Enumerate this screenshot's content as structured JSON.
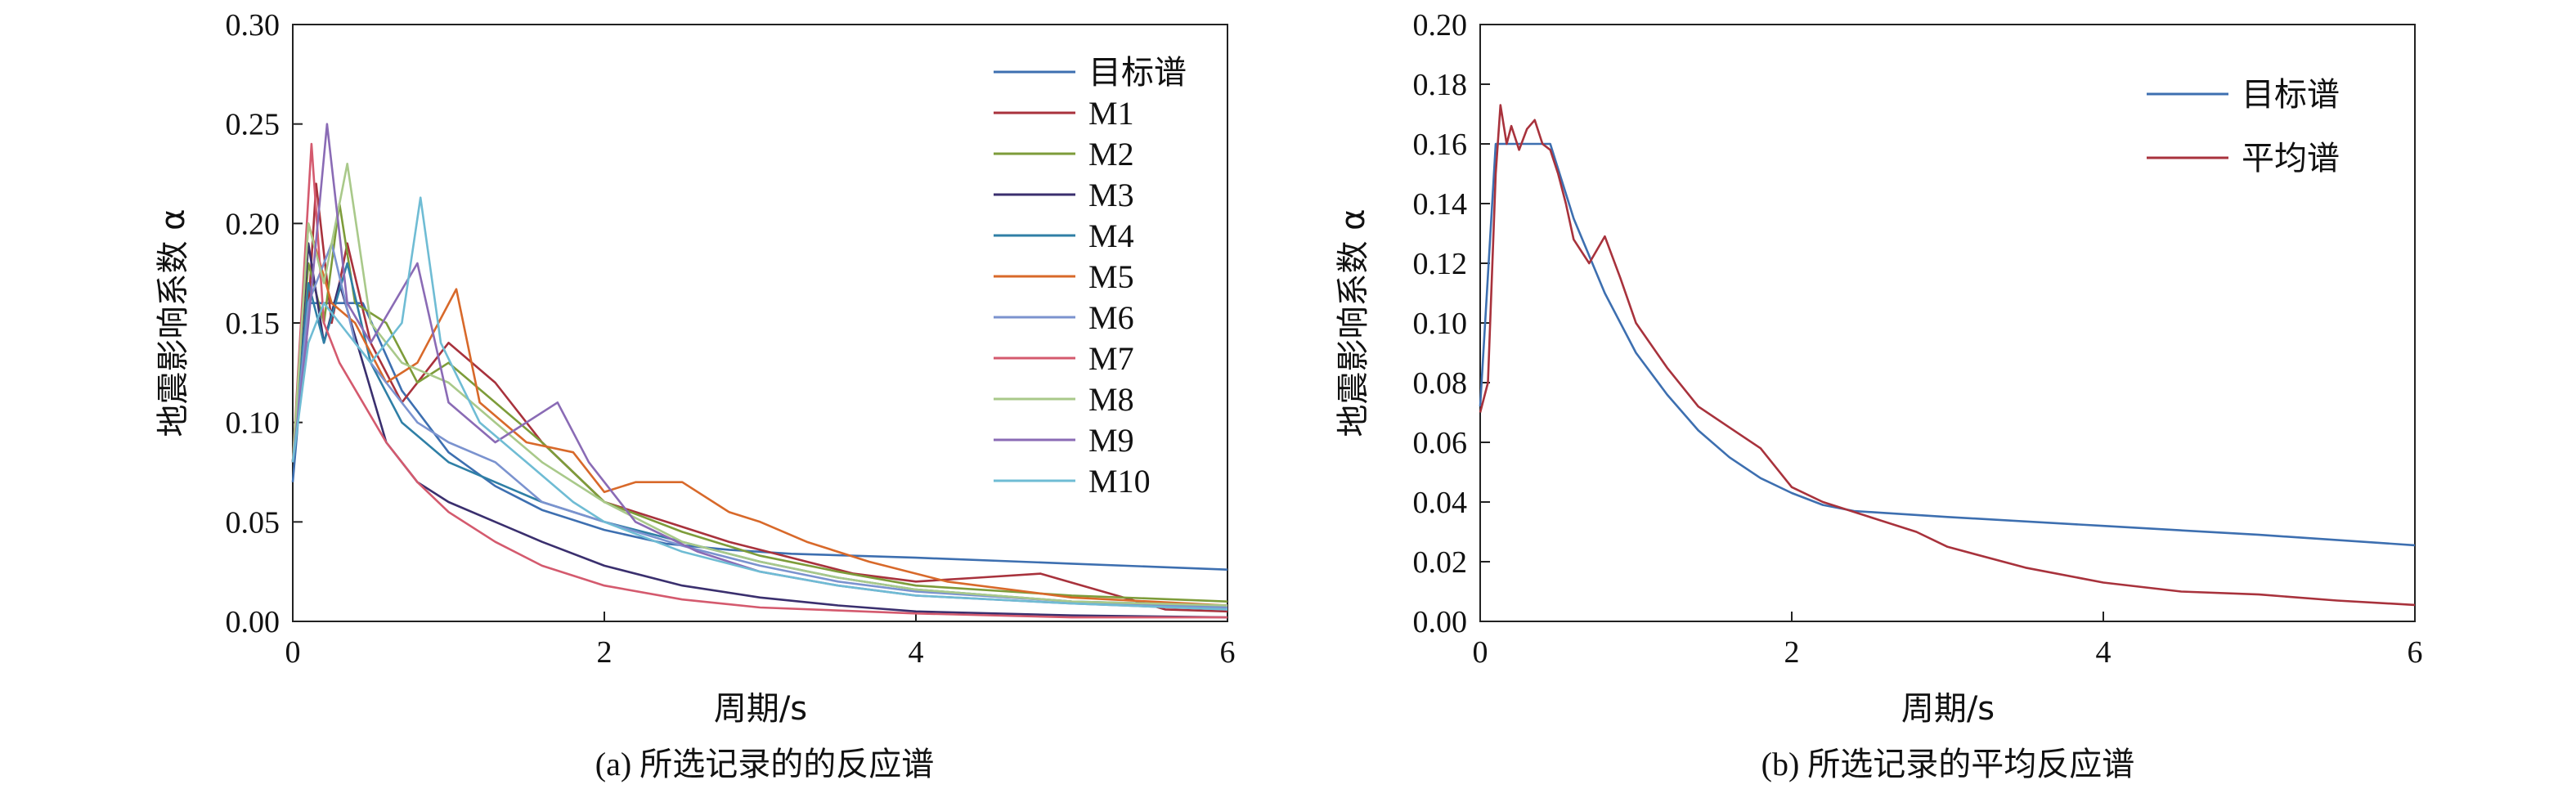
{
  "chart_data": [
    {
      "type": "line",
      "caption": "(a) 所选记录的的反应谱",
      "xlabel": "周期/s",
      "ylabel": "地震影响系数 α",
      "xlim": [
        0,
        6
      ],
      "ylim": [
        0,
        0.3
      ],
      "xticks": [
        "0",
        "2",
        "4",
        "6"
      ],
      "yticks": [
        "0.00",
        "0.05",
        "0.10",
        "0.15",
        "0.20",
        "0.25",
        "0.30"
      ],
      "grid": false,
      "legend_position": "top-right",
      "series": [
        {
          "name": "目标谱",
          "color": "#3d6fb0",
          "points": [
            [
              0,
              0.07
            ],
            [
              0.1,
              0.16
            ],
            [
              0.45,
              0.16
            ],
            [
              0.7,
              0.116
            ],
            [
              1.0,
              0.085
            ],
            [
              1.3,
              0.068
            ],
            [
              1.6,
              0.056
            ],
            [
              2.0,
              0.046
            ],
            [
              2.4,
              0.039
            ],
            [
              2.8,
              0.036
            ],
            [
              3.2,
              0.034
            ],
            [
              4.0,
              0.032
            ],
            [
              5.0,
              0.029
            ],
            [
              6.0,
              0.026
            ]
          ]
        },
        {
          "name": "M1",
          "color": "#a8323c",
          "points": [
            [
              0,
              0.08
            ],
            [
              0.08,
              0.13
            ],
            [
              0.15,
              0.22
            ],
            [
              0.25,
              0.15
            ],
            [
              0.35,
              0.19
            ],
            [
              0.5,
              0.14
            ],
            [
              0.7,
              0.11
            ],
            [
              1.0,
              0.14
            ],
            [
              1.3,
              0.12
            ],
            [
              1.6,
              0.09
            ],
            [
              2.0,
              0.06
            ],
            [
              2.4,
              0.05
            ],
            [
              2.8,
              0.04
            ],
            [
              3.2,
              0.032
            ],
            [
              3.6,
              0.024
            ],
            [
              4.0,
              0.02
            ],
            [
              4.4,
              0.022
            ],
            [
              4.8,
              0.024
            ],
            [
              5.2,
              0.015
            ],
            [
              5.6,
              0.006
            ],
            [
              6.0,
              0.005
            ]
          ]
        },
        {
          "name": "M2",
          "color": "#7d9c3a",
          "points": [
            [
              0,
              0.08
            ],
            [
              0.1,
              0.18
            ],
            [
              0.2,
              0.15
            ],
            [
              0.3,
              0.21
            ],
            [
              0.4,
              0.16
            ],
            [
              0.6,
              0.15
            ],
            [
              0.8,
              0.12
            ],
            [
              1.0,
              0.13
            ],
            [
              1.3,
              0.11
            ],
            [
              1.6,
              0.09
            ],
            [
              2.0,
              0.06
            ],
            [
              2.5,
              0.045
            ],
            [
              3.0,
              0.033
            ],
            [
              3.5,
              0.025
            ],
            [
              4.0,
              0.018
            ],
            [
              5.0,
              0.013
            ],
            [
              6.0,
              0.01
            ]
          ]
        },
        {
          "name": "M3",
          "color": "#3a2f6e",
          "points": [
            [
              0,
              0.08
            ],
            [
              0.1,
              0.19
            ],
            [
              0.2,
              0.14
            ],
            [
              0.3,
              0.17
            ],
            [
              0.45,
              0.13
            ],
            [
              0.6,
              0.09
            ],
            [
              0.8,
              0.07
            ],
            [
              1.0,
              0.06
            ],
            [
              1.3,
              0.05
            ],
            [
              1.6,
              0.04
            ],
            [
              2.0,
              0.028
            ],
            [
              2.5,
              0.018
            ],
            [
              3.0,
              0.012
            ],
            [
              3.5,
              0.008
            ],
            [
              4.0,
              0.005
            ],
            [
              5.0,
              0.003
            ],
            [
              6.0,
              0.002
            ]
          ]
        },
        {
          "name": "M4",
          "color": "#2f7fa6",
          "points": [
            [
              0,
              0.08
            ],
            [
              0.1,
              0.17
            ],
            [
              0.2,
              0.14
            ],
            [
              0.35,
              0.18
            ],
            [
              0.5,
              0.13
            ],
            [
              0.7,
              0.1
            ],
            [
              1.0,
              0.08
            ],
            [
              1.3,
              0.07
            ],
            [
              1.6,
              0.06
            ],
            [
              2.0,
              0.05
            ],
            [
              2.5,
              0.04
            ],
            [
              3.0,
              0.03
            ],
            [
              3.5,
              0.022
            ],
            [
              4.0,
              0.016
            ],
            [
              5.0,
              0.01
            ],
            [
              6.0,
              0.008
            ]
          ]
        },
        {
          "name": "M5",
          "color": "#d8692a",
          "points": [
            [
              0,
              0.08
            ],
            [
              0.1,
              0.2
            ],
            [
              0.25,
              0.16
            ],
            [
              0.4,
              0.15
            ],
            [
              0.6,
              0.12
            ],
            [
              0.8,
              0.13
            ],
            [
              1.05,
              0.167
            ],
            [
              1.2,
              0.11
            ],
            [
              1.5,
              0.09
            ],
            [
              1.8,
              0.085
            ],
            [
              2.0,
              0.065
            ],
            [
              2.2,
              0.07
            ],
            [
              2.5,
              0.07
            ],
            [
              2.8,
              0.055
            ],
            [
              3.0,
              0.05
            ],
            [
              3.3,
              0.04
            ],
            [
              3.7,
              0.03
            ],
            [
              4.2,
              0.02
            ],
            [
              5.0,
              0.012
            ],
            [
              6.0,
              0.008
            ]
          ]
        },
        {
          "name": "M6",
          "color": "#7b93cf",
          "points": [
            [
              0,
              0.08
            ],
            [
              0.1,
              0.16
            ],
            [
              0.25,
              0.19
            ],
            [
              0.4,
              0.14
            ],
            [
              0.6,
              0.12
            ],
            [
              0.8,
              0.1
            ],
            [
              1.0,
              0.09
            ],
            [
              1.3,
              0.08
            ],
            [
              1.6,
              0.06
            ],
            [
              2.0,
              0.05
            ],
            [
              2.5,
              0.038
            ],
            [
              3.0,
              0.028
            ],
            [
              3.5,
              0.02
            ],
            [
              4.0,
              0.015
            ],
            [
              5.0,
              0.01
            ],
            [
              6.0,
              0.007
            ]
          ]
        },
        {
          "name": "M7",
          "color": "#d45a6e",
          "points": [
            [
              0,
              0.08
            ],
            [
              0.12,
              0.24
            ],
            [
              0.2,
              0.15
            ],
            [
              0.3,
              0.13
            ],
            [
              0.45,
              0.11
            ],
            [
              0.6,
              0.09
            ],
            [
              0.8,
              0.07
            ],
            [
              1.0,
              0.055
            ],
            [
              1.3,
              0.04
            ],
            [
              1.6,
              0.028
            ],
            [
              2.0,
              0.018
            ],
            [
              2.5,
              0.011
            ],
            [
              3.0,
              0.007
            ],
            [
              4.0,
              0.004
            ],
            [
              5.0,
              0.002
            ],
            [
              6.0,
              0.002
            ]
          ]
        },
        {
          "name": "M8",
          "color": "#a9c98a",
          "points": [
            [
              0,
              0.08
            ],
            [
              0.1,
              0.2
            ],
            [
              0.2,
              0.17
            ],
            [
              0.35,
              0.23
            ],
            [
              0.5,
              0.15
            ],
            [
              0.7,
              0.13
            ],
            [
              1.0,
              0.12
            ],
            [
              1.3,
              0.1
            ],
            [
              1.6,
              0.08
            ],
            [
              2.0,
              0.06
            ],
            [
              2.5,
              0.04
            ],
            [
              3.0,
              0.03
            ],
            [
              3.5,
              0.022
            ],
            [
              4.0,
              0.016
            ],
            [
              5.0,
              0.01
            ],
            [
              6.0,
              0.008
            ]
          ]
        },
        {
          "name": "M9",
          "color": "#8a6bb5",
          "points": [
            [
              0,
              0.08
            ],
            [
              0.1,
              0.15
            ],
            [
              0.22,
              0.25
            ],
            [
              0.35,
              0.16
            ],
            [
              0.5,
              0.14
            ],
            [
              0.8,
              0.18
            ],
            [
              1.0,
              0.11
            ],
            [
              1.3,
              0.09
            ],
            [
              1.5,
              0.1
            ],
            [
              1.7,
              0.11
            ],
            [
              1.9,
              0.08
            ],
            [
              2.2,
              0.05
            ],
            [
              2.6,
              0.035
            ],
            [
              3.0,
              0.025
            ],
            [
              3.5,
              0.018
            ],
            [
              4.0,
              0.013
            ],
            [
              5.0,
              0.009
            ],
            [
              6.0,
              0.006
            ]
          ]
        },
        {
          "name": "M10",
          "color": "#6fbcd4",
          "points": [
            [
              0,
              0.08
            ],
            [
              0.1,
              0.14
            ],
            [
              0.2,
              0.16
            ],
            [
              0.3,
              0.15
            ],
            [
              0.5,
              0.13
            ],
            [
              0.7,
              0.15
            ],
            [
              0.82,
              0.213
            ],
            [
              0.95,
              0.14
            ],
            [
              1.2,
              0.1
            ],
            [
              1.5,
              0.08
            ],
            [
              1.8,
              0.06
            ],
            [
              2.0,
              0.05
            ],
            [
              2.5,
              0.035
            ],
            [
              3.0,
              0.025
            ],
            [
              3.5,
              0.018
            ],
            [
              4.0,
              0.013
            ],
            [
              5.0,
              0.009
            ],
            [
              6.0,
              0.006
            ]
          ]
        }
      ]
    },
    {
      "type": "line",
      "caption": "(b) 所选记录的平均反应谱",
      "xlabel": "周期/s",
      "ylabel": "地震影响系数 α",
      "xlim": [
        0,
        6
      ],
      "ylim": [
        0,
        0.2
      ],
      "xticks": [
        "0",
        "2",
        "4",
        "6"
      ],
      "yticks": [
        "0.00",
        "0.02",
        "0.04",
        "0.06",
        "0.08",
        "0.10",
        "0.12",
        "0.14",
        "0.16",
        "0.18",
        "0.20"
      ],
      "grid": false,
      "legend_position": "top-right",
      "series": [
        {
          "name": "目标谱",
          "color": "#3d6fb0",
          "points": [
            [
              0,
              0.072
            ],
            [
              0.1,
              0.16
            ],
            [
              0.45,
              0.16
            ],
            [
              0.6,
              0.135
            ],
            [
              0.8,
              0.11
            ],
            [
              1.0,
              0.09
            ],
            [
              1.2,
              0.076
            ],
            [
              1.4,
              0.064
            ],
            [
              1.6,
              0.055
            ],
            [
              1.8,
              0.048
            ],
            [
              2.0,
              0.043
            ],
            [
              2.2,
              0.039
            ],
            [
              2.4,
              0.037
            ],
            [
              3.0,
              0.035
            ],
            [
              4.0,
              0.032
            ],
            [
              5.0,
              0.029
            ],
            [
              6.0,
              0.0255
            ]
          ]
        },
        {
          "name": "平均谱",
          "color": "#a8323c",
          "points": [
            [
              0,
              0.07
            ],
            [
              0.05,
              0.08
            ],
            [
              0.1,
              0.15
            ],
            [
              0.13,
              0.173
            ],
            [
              0.17,
              0.16
            ],
            [
              0.2,
              0.166
            ],
            [
              0.25,
              0.158
            ],
            [
              0.3,
              0.165
            ],
            [
              0.35,
              0.168
            ],
            [
              0.4,
              0.16
            ],
            [
              0.45,
              0.158
            ],
            [
              0.5,
              0.15
            ],
            [
              0.55,
              0.14
            ],
            [
              0.6,
              0.128
            ],
            [
              0.7,
              0.12
            ],
            [
              0.8,
              0.129
            ],
            [
              0.9,
              0.115
            ],
            [
              1.0,
              0.1
            ],
            [
              1.2,
              0.085
            ],
            [
              1.4,
              0.072
            ],
            [
              1.6,
              0.065
            ],
            [
              1.8,
              0.058
            ],
            [
              2.0,
              0.045
            ],
            [
              2.2,
              0.04
            ],
            [
              2.5,
              0.035
            ],
            [
              2.8,
              0.03
            ],
            [
              3.0,
              0.025
            ],
            [
              3.5,
              0.018
            ],
            [
              4.0,
              0.013
            ],
            [
              4.5,
              0.01
            ],
            [
              5.0,
              0.009
            ],
            [
              5.5,
              0.007
            ],
            [
              6.0,
              0.0055
            ]
          ]
        }
      ]
    }
  ]
}
